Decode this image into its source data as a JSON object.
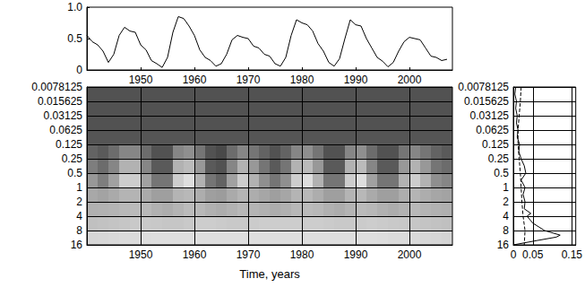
{
  "chart_data": [
    {
      "type": "line",
      "x": [
        1940,
        1941,
        1942,
        1943,
        1944,
        1945,
        1946,
        1947,
        1948,
        1949,
        1950,
        1951,
        1952,
        1953,
        1954,
        1955,
        1956,
        1957,
        1958,
        1959,
        1960,
        1961,
        1962,
        1963,
        1964,
        1965,
        1966,
        1967,
        1968,
        1969,
        1970,
        1971,
        1972,
        1973,
        1974,
        1975,
        1976,
        1977,
        1978,
        1979,
        1980,
        1981,
        1982,
        1983,
        1984,
        1985,
        1986,
        1987,
        1988,
        1989,
        1990,
        1991,
        1992,
        1993,
        1994,
        1995,
        1996,
        1997,
        1998,
        1999,
        2000,
        2001,
        2002,
        2003,
        2004,
        2005,
        2006,
        2007
      ],
      "values": [
        0.55,
        0.45,
        0.4,
        0.3,
        0.12,
        0.25,
        0.55,
        0.68,
        0.62,
        0.6,
        0.4,
        0.32,
        0.15,
        0.1,
        0.04,
        0.2,
        0.6,
        0.85,
        0.82,
        0.7,
        0.55,
        0.32,
        0.2,
        0.15,
        0.06,
        0.1,
        0.25,
        0.48,
        0.55,
        0.52,
        0.5,
        0.38,
        0.35,
        0.25,
        0.22,
        0.1,
        0.06,
        0.2,
        0.55,
        0.8,
        0.75,
        0.72,
        0.62,
        0.42,
        0.3,
        0.12,
        0.06,
        0.18,
        0.5,
        0.8,
        0.72,
        0.7,
        0.5,
        0.35,
        0.2,
        0.14,
        0.05,
        0.12,
        0.3,
        0.45,
        0.52,
        0.5,
        0.48,
        0.35,
        0.22,
        0.2,
        0.15,
        0.17
      ],
      "color": "#000000",
      "xlim": [
        1940,
        2008
      ],
      "xticks": [
        1950,
        1960,
        1970,
        1980,
        1990,
        2000
      ],
      "ylim": [
        0,
        1
      ],
      "yticks": [
        0,
        0.5,
        {
          "value": 1,
          "label": "1.0"
        }
      ],
      "grid": false
    },
    {
      "type": "heatmap",
      "xlabel": "Time, years",
      "x_edges": [
        1940,
        1942,
        1944,
        1946,
        1948,
        1950,
        1952,
        1954,
        1956,
        1958,
        1960,
        1962,
        1964,
        1966,
        1968,
        1970,
        1972,
        1974,
        1976,
        1978,
        1980,
        1982,
        1984,
        1986,
        1988,
        1990,
        1992,
        1994,
        1996,
        1998,
        2000,
        2002,
        2004,
        2006,
        2008
      ],
      "y_edges": [
        0.0078125,
        0.015625,
        0.03125,
        0.0625,
        0.125,
        0.25,
        0.5,
        1,
        2,
        4,
        8,
        16
      ],
      "cells": [
        [
          0.1,
          0.1,
          0.1,
          0.1,
          0.1,
          0.1,
          0.1,
          0.1,
          0.1,
          0.1,
          0.1,
          0.1,
          0.1,
          0.1,
          0.1,
          0.1,
          0.1,
          0.1,
          0.1,
          0.1,
          0.1,
          0.1,
          0.1,
          0.1,
          0.1,
          0.1,
          0.1,
          0.1,
          0.1,
          0.1,
          0.1,
          0.1,
          0.1,
          0.1
        ],
        [
          0.1,
          0.1,
          0.1,
          0.1,
          0.1,
          0.1,
          0.1,
          0.1,
          0.1,
          0.1,
          0.1,
          0.1,
          0.1,
          0.1,
          0.1,
          0.1,
          0.1,
          0.1,
          0.1,
          0.1,
          0.1,
          0.1,
          0.1,
          0.1,
          0.1,
          0.1,
          0.1,
          0.1,
          0.1,
          0.1,
          0.1,
          0.1,
          0.1,
          0.1
        ],
        [
          0.1,
          0.1,
          0.1,
          0.1,
          0.1,
          0.1,
          0.1,
          0.1,
          0.1,
          0.1,
          0.1,
          0.1,
          0.1,
          0.1,
          0.1,
          0.1,
          0.1,
          0.1,
          0.1,
          0.1,
          0.1,
          0.1,
          0.1,
          0.1,
          0.1,
          0.1,
          0.1,
          0.1,
          0.1,
          0.1,
          0.1,
          0.1,
          0.1,
          0.1
        ],
        [
          0.12,
          0.12,
          0.12,
          0.12,
          0.12,
          0.12,
          0.12,
          0.12,
          0.12,
          0.12,
          0.12,
          0.12,
          0.12,
          0.12,
          0.12,
          0.12,
          0.12,
          0.12,
          0.12,
          0.12,
          0.12,
          0.12,
          0.12,
          0.12,
          0.12,
          0.12,
          0.12,
          0.12,
          0.12,
          0.12,
          0.12,
          0.12,
          0.12,
          0.12
        ],
        [
          0.2,
          0.15,
          0.25,
          0.4,
          0.4,
          0.25,
          0.1,
          0.1,
          0.4,
          0.45,
          0.3,
          0.1,
          0.05,
          0.25,
          0.4,
          0.3,
          0.2,
          0.1,
          0.2,
          0.4,
          0.45,
          0.3,
          0.1,
          0.1,
          0.4,
          0.45,
          0.25,
          0.1,
          0.1,
          0.3,
          0.4,
          0.3,
          0.2,
          0.15
        ],
        [
          0.35,
          0.25,
          0.4,
          0.65,
          0.65,
          0.4,
          0.15,
          0.15,
          0.65,
          0.7,
          0.5,
          0.15,
          0.1,
          0.4,
          0.65,
          0.5,
          0.3,
          0.15,
          0.3,
          0.65,
          0.7,
          0.5,
          0.15,
          0.15,
          0.65,
          0.7,
          0.4,
          0.15,
          0.15,
          0.5,
          0.65,
          0.5,
          0.3,
          0.25
        ],
        [
          0.5,
          0.35,
          0.55,
          0.8,
          0.8,
          0.55,
          0.3,
          0.3,
          0.8,
          0.9,
          0.65,
          0.3,
          0.2,
          0.55,
          0.8,
          0.65,
          0.45,
          0.3,
          0.45,
          0.8,
          0.9,
          0.65,
          0.3,
          0.3,
          0.8,
          0.9,
          0.55,
          0.3,
          0.3,
          0.65,
          0.8,
          0.65,
          0.45,
          0.4
        ],
        [
          0.59,
          0.56,
          0.6,
          0.66,
          0.66,
          0.6,
          0.54,
          0.54,
          0.66,
          0.68,
          0.62,
          0.54,
          0.52,
          0.6,
          0.66,
          0.62,
          0.58,
          0.54,
          0.58,
          0.66,
          0.68,
          0.62,
          0.54,
          0.54,
          0.66,
          0.68,
          0.6,
          0.54,
          0.54,
          0.62,
          0.66,
          0.62,
          0.58,
          0.56
        ],
        [
          0.64,
          0.65,
          0.66,
          0.68,
          0.7,
          0.68,
          0.64,
          0.62,
          0.66,
          0.7,
          0.68,
          0.64,
          0.62,
          0.65,
          0.68,
          0.66,
          0.64,
          0.62,
          0.64,
          0.68,
          0.7,
          0.68,
          0.64,
          0.62,
          0.66,
          0.7,
          0.68,
          0.64,
          0.62,
          0.65,
          0.68,
          0.66,
          0.64,
          0.63
        ],
        [
          0.73,
          0.74,
          0.75,
          0.76,
          0.78,
          0.78,
          0.77,
          0.76,
          0.76,
          0.78,
          0.8,
          0.8,
          0.79,
          0.78,
          0.78,
          0.79,
          0.8,
          0.8,
          0.8,
          0.8,
          0.8,
          0.8,
          0.79,
          0.78,
          0.78,
          0.79,
          0.8,
          0.79,
          0.78,
          0.77,
          0.76,
          0.75,
          0.74,
          0.73
        ],
        [
          0.85,
          0.86,
          0.87,
          0.88,
          0.88,
          0.89,
          0.9,
          0.9,
          0.9,
          0.9,
          0.9,
          0.9,
          0.9,
          0.9,
          0.9,
          0.9,
          0.9,
          0.9,
          0.9,
          0.9,
          0.9,
          0.9,
          0.9,
          0.9,
          0.9,
          0.9,
          0.9,
          0.89,
          0.88,
          0.88,
          0.87,
          0.86,
          0.85,
          0.84
        ]
      ],
      "value_range": [
        0,
        1
      ],
      "xlim": [
        1940,
        2008
      ],
      "xticks": [
        1950,
        1960,
        1970,
        1980,
        1990,
        2000
      ],
      "ylim": [
        0.0078125,
        16
      ],
      "yticks": [
        0.0078125,
        0.015625,
        0.03125,
        0.0625,
        0.125,
        0.25,
        0.5,
        1,
        2,
        4,
        8,
        16
      ],
      "log": "y",
      "grid": true
    },
    {
      "type": "line",
      "orientation": "horizontal",
      "series": [
        {
          "color": "#000000",
          "line_style": "solid",
          "periods": [
            0.0078125,
            0.011,
            0.015625,
            0.022,
            0.03125,
            0.044,
            0.0625,
            0.088,
            0.125,
            0.177,
            0.25,
            0.35,
            0.5,
            0.7,
            1,
            1.4,
            2,
            2.8,
            3.5,
            4,
            5.6,
            8,
            10,
            11,
            13,
            16
          ],
          "values": [
            0.006,
            0.004,
            0.008,
            0.006,
            0.01,
            0.008,
            0.012,
            0.01,
            0.016,
            0.014,
            0.02,
            0.028,
            0.032,
            0.02,
            0.03,
            0.025,
            0.03,
            0.028,
            0.045,
            0.035,
            0.05,
            0.08,
            0.12,
            0.11,
            0.06,
            0
          ]
        },
        {
          "color": "#000000",
          "line_style": "dashed",
          "periods": [
            0.0078125,
            0.015625,
            0.03125,
            0.0625,
            0.125,
            0.25,
            0.5,
            1,
            2,
            4,
            8,
            16
          ],
          "values": [
            0.02,
            0.018,
            0.015,
            0.012,
            0.012,
            0.015,
            0.018,
            0.02,
            0.022,
            0.025,
            0.03,
            0.028
          ]
        }
      ],
      "xlim": [
        0,
        0.16
      ],
      "xticks": [
        0,
        0.05,
        0.15
      ],
      "ylim": [
        0.0078125,
        16
      ],
      "yticks": [
        0.0078125,
        0.015625,
        0.03125,
        0.0625,
        0.125,
        0.25,
        0.5,
        1,
        2,
        4,
        8,
        16
      ],
      "log": "y",
      "grid": true
    }
  ]
}
